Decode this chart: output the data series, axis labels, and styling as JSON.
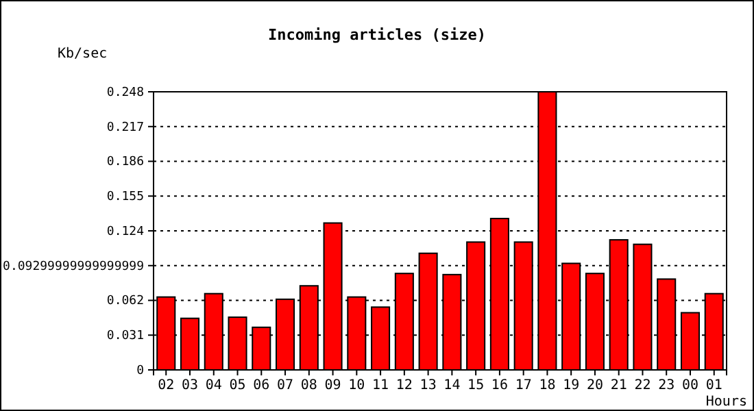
{
  "chart_data": {
    "type": "bar",
    "title": "Incoming articles (size)",
    "ylabel": "Kb/sec",
    "xlabel": "Hours",
    "categories": [
      "02",
      "03",
      "04",
      "05",
      "06",
      "07",
      "08",
      "09",
      "10",
      "11",
      "12",
      "13",
      "14",
      "15",
      "16",
      "17",
      "18",
      "19",
      "20",
      "21",
      "22",
      "23",
      "00",
      "01"
    ],
    "values": [
      0.065,
      0.046,
      0.068,
      0.047,
      0.038,
      0.063,
      0.075,
      0.131,
      0.065,
      0.056,
      0.086,
      0.104,
      0.085,
      0.114,
      0.135,
      0.114,
      0.248,
      0.095,
      0.086,
      0.116,
      0.112,
      0.081,
      0.051,
      0.068
    ],
    "color": "#ff0000",
    "ylim": [
      0,
      0.248
    ],
    "yticks": [
      0,
      0.031,
      0.062,
      {
        "value": 0.093,
        "label": "0.09299999999999999"
      },
      0.124,
      0.155,
      0.186,
      0.217,
      0.248
    ],
    "grid": "y"
  }
}
